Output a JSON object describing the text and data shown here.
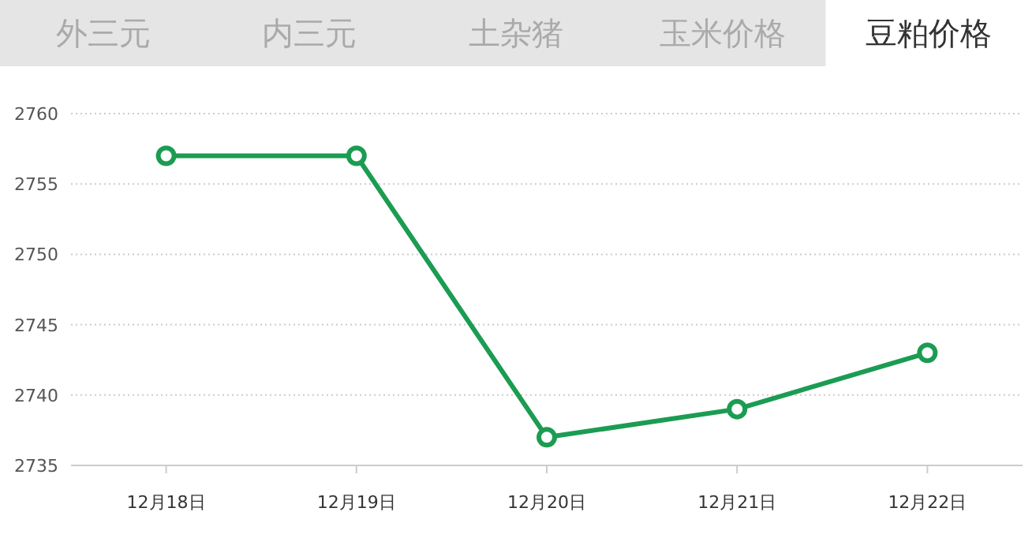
{
  "chart_data": {
    "type": "line",
    "title": "豆粕价格",
    "annotations": [
      "外三元",
      "内三元",
      "土杂猪",
      "玉米价格"
    ],
    "categories": [
      "12月18日",
      "12月19日",
      "12月20日",
      "12月21日",
      "12月22日"
    ],
    "series": [
      {
        "color": "#1b9c52",
        "values": [
          2757,
          2757,
          2737,
          2739,
          2743
        ]
      }
    ],
    "ylim": [
      2735,
      2760
    ],
    "yticks": [
      2735,
      2740,
      2745,
      2750,
      2755,
      2760
    ],
    "grid": "y",
    "marker": "circle",
    "line_style": "solid"
  }
}
